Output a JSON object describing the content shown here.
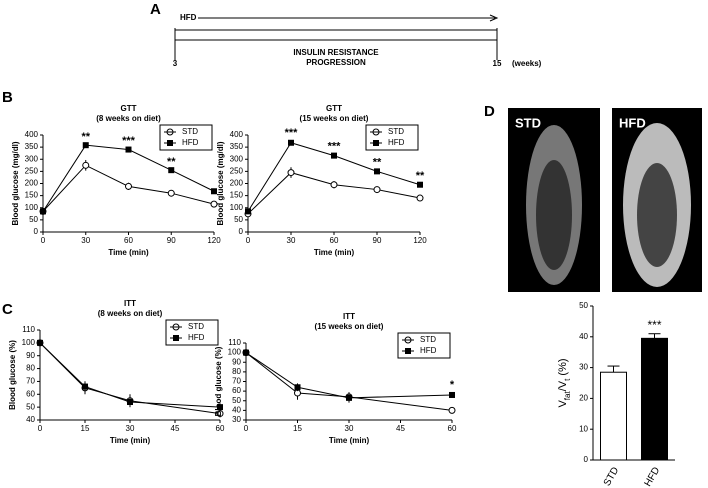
{
  "panels": [
    "A",
    "B",
    "C",
    "D"
  ],
  "timeline": {
    "diet": "HFD",
    "start": "3",
    "end": "15",
    "unit": "(weeks)",
    "label_lines": [
      "INSULIN RESISTANCE",
      "PROGRESSION"
    ]
  },
  "images": [
    "STD",
    "HFD"
  ],
  "chart_data": [
    {
      "type": "line",
      "title": "GTT",
      "subtitle": "(8 weeks on diet)",
      "xlabel": "Time (min)",
      "ylabel": "Blood glucose  (mg/dl)",
      "x": [
        0,
        30,
        60,
        90,
        120
      ],
      "xlim": [
        0,
        120
      ],
      "xticks": [
        0,
        30,
        60,
        90,
        120
      ],
      "ylim": [
        0,
        400
      ],
      "yticks": [
        0,
        50,
        100,
        150,
        200,
        250,
        300,
        350,
        400
      ],
      "series": [
        {
          "name": "STD",
          "color": "#000000",
          "marker": "circle-open",
          "values": [
            85,
            275,
            188,
            160,
            115
          ],
          "errors": [
            5,
            22,
            15,
            10,
            10
          ]
        },
        {
          "name": "HFD",
          "color": "#000000",
          "marker": "square",
          "values": [
            85,
            358,
            340,
            255,
            168
          ],
          "errors": [
            5,
            5,
            5,
            5,
            5
          ],
          "sig": [
            null,
            "**",
            "***",
            "**",
            null
          ]
        }
      ]
    },
    {
      "type": "line",
      "title": "GTT",
      "subtitle": "(15 weeks on diet)",
      "xlabel": "Time (min)",
      "ylabel": "Blood glucose  (mg/dl)",
      "x": [
        0,
        30,
        60,
        90,
        120
      ],
      "xlim": [
        0,
        120
      ],
      "xticks": [
        0,
        30,
        60,
        90,
        120
      ],
      "ylim": [
        0,
        400
      ],
      "yticks": [
        0,
        50,
        100,
        150,
        200,
        250,
        300,
        350,
        400
      ],
      "series": [
        {
          "name": "STD",
          "color": "#000000",
          "marker": "circle-open",
          "values": [
            75,
            245,
            195,
            175,
            140
          ],
          "errors": [
            10,
            22,
            15,
            12,
            10
          ]
        },
        {
          "name": "HFD",
          "color": "#000000",
          "marker": "square",
          "values": [
            85,
            368,
            315,
            250,
            195
          ],
          "errors": [
            5,
            10,
            8,
            8,
            6
          ],
          "sig": [
            null,
            "***",
            "***",
            "**",
            "**"
          ]
        }
      ]
    },
    {
      "type": "line",
      "title": "ITT",
      "subtitle": "(8 weeks on diet)",
      "xlabel": "Time (min)",
      "ylabel": "Blood glucose (%)",
      "x": [
        0,
        15,
        30,
        60
      ],
      "xlim": [
        0,
        60
      ],
      "xticks": [
        0,
        15,
        30,
        45,
        60
      ],
      "ylim": [
        40,
        110
      ],
      "yticks": [
        40,
        50,
        60,
        70,
        80,
        90,
        100,
        110
      ],
      "series": [
        {
          "name": "STD",
          "color": "#000000",
          "marker": "circle-open",
          "values": [
            100,
            65,
            55,
            45
          ],
          "errors": [
            0,
            5,
            5,
            3
          ]
        },
        {
          "name": "HFD",
          "color": "#000000",
          "marker": "square",
          "values": [
            100,
            66,
            54,
            50
          ],
          "errors": [
            0,
            4,
            4,
            3
          ]
        }
      ]
    },
    {
      "type": "line",
      "title": "ITT",
      "subtitle": "(15 weeks on diet)",
      "xlabel": "Time (min)",
      "ylabel": "Blood glucose (%)",
      "x": [
        0,
        15,
        30,
        60
      ],
      "xlim": [
        0,
        60
      ],
      "xticks": [
        0,
        15,
        30,
        45,
        60
      ],
      "ylim": [
        30,
        110
      ],
      "yticks": [
        30,
        40,
        50,
        60,
        70,
        80,
        90,
        100,
        110
      ],
      "series": [
        {
          "name": "STD",
          "color": "#000000",
          "marker": "circle-open",
          "values": [
            100,
            58,
            54,
            40
          ],
          "errors": [
            0,
            7,
            5,
            3
          ]
        },
        {
          "name": "HFD",
          "color": "#000000",
          "marker": "square",
          "values": [
            100,
            64,
            53,
            56
          ],
          "errors": [
            0,
            4,
            5,
            3
          ],
          "sig": [
            null,
            null,
            null,
            "*"
          ]
        }
      ]
    },
    {
      "type": "bar",
      "ylabel_parts": [
        "V",
        "fat",
        "/V",
        "t",
        " (%)"
      ],
      "categories": [
        "STD",
        "HFD"
      ],
      "values": [
        28.5,
        39.5
      ],
      "errors": [
        2,
        1.5
      ],
      "colors": [
        "#ffffff",
        "#000000"
      ],
      "sig": [
        null,
        "***"
      ],
      "ylim": [
        0,
        50
      ],
      "yticks": [
        0,
        10,
        20,
        30,
        40,
        50
      ]
    }
  ]
}
